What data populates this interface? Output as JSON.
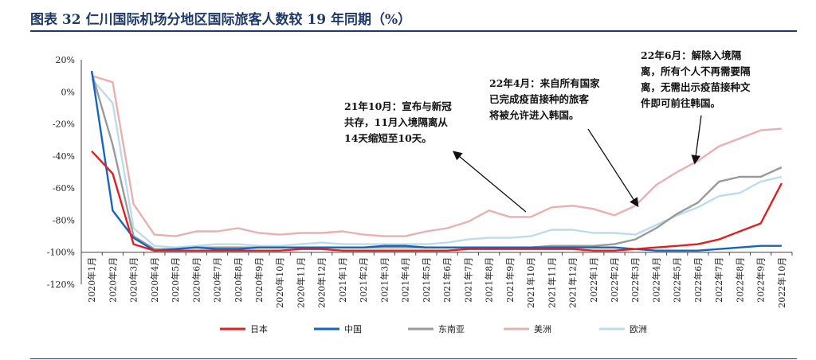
{
  "title": "图表 32  仁川国际机场分地区国际旅客人数较 19 年同期（%）",
  "chart_data": {
    "type": "line",
    "ylim": [
      -120,
      20
    ],
    "yticks": [
      "20%",
      "0%",
      "-20%",
      "-40%",
      "-60%",
      "-80%",
      "-100%",
      "-120%"
    ],
    "ytick_values": [
      20,
      0,
      -20,
      -40,
      -60,
      -80,
      -100,
      -120
    ],
    "categories": [
      "2020年1月",
      "2020年2月",
      "2020年3月",
      "2020年4月",
      "2020年5月",
      "2020年6月",
      "2020年7月",
      "2020年8月",
      "2020年9月",
      "2020年10月",
      "2020年11月",
      "2020年12月",
      "2021年1月",
      "2021年2月",
      "2021年3月",
      "2021年4月",
      "2021年5月",
      "2021年6月",
      "2021年7月",
      "2021年8月",
      "2021年9月",
      "2021年10月",
      "2021年11月",
      "2021年12月",
      "2022年1月",
      "2022年2月",
      "2022年3月",
      "2022年4月",
      "2022年5月",
      "2022年6月",
      "2022年7月",
      "2022年8月",
      "2022年9月",
      "2022年10月"
    ],
    "series": [
      {
        "name": "日本",
        "color": "#e02020",
        "values": [
          -37,
          -51,
          -95,
          -99,
          -99,
          -99,
          -99,
          -99,
          -99,
          -99,
          -98,
          -98,
          -99,
          -99,
          -99,
          -99,
          -99,
          -99,
          -98,
          -98,
          -98,
          -98,
          -98,
          -98,
          -99,
          -99,
          -98,
          -97,
          -96,
          -95,
          -92,
          -87,
          -82,
          -57
        ]
      },
      {
        "name": "中国",
        "color": "#1565c0",
        "values": [
          13,
          -74,
          -91,
          -99,
          -98,
          -97,
          -98,
          -98,
          -97,
          -97,
          -97,
          -97,
          -97,
          -97,
          -96,
          -96,
          -97,
          -97,
          -97,
          -97,
          -97,
          -97,
          -97,
          -97,
          -97,
          -97,
          -98,
          -99,
          -99,
          -99,
          -98,
          -97,
          -96,
          -96
        ]
      },
      {
        "name": "东南亚",
        "color": "#9a9a9a",
        "values": [
          12,
          -33,
          -90,
          -98,
          -98,
          -97,
          -97,
          -97,
          -97,
          -97,
          -97,
          -97,
          -97,
          -97,
          -97,
          -97,
          -97,
          -97,
          -97,
          -97,
          -97,
          -97,
          -96,
          -96,
          -96,
          -95,
          -92,
          -85,
          -76,
          -69,
          -56,
          -53,
          -53,
          -47
        ]
      },
      {
        "name": "美洲",
        "color": "#eab0b0",
        "values": [
          10,
          6,
          -70,
          -89,
          -90,
          -87,
          -87,
          -85,
          -88,
          -89,
          -88,
          -88,
          -87,
          -89,
          -90,
          -90,
          -87,
          -85,
          -81,
          -74,
          -78,
          -78,
          -72,
          -71,
          -73,
          -77,
          -71,
          -58,
          -50,
          -43,
          -34,
          -29,
          -24,
          -23
        ]
      },
      {
        "name": "欧洲",
        "color": "#bcdcec",
        "values": [
          8,
          -7,
          -85,
          -96,
          -97,
          -96,
          -95,
          -95,
          -96,
          -96,
          -95,
          -94,
          -95,
          -95,
          -95,
          -95,
          -95,
          -94,
          -92,
          -91,
          -91,
          -90,
          -86,
          -86,
          -88,
          -88,
          -89,
          -83,
          -77,
          -72,
          -65,
          -63,
          -56,
          -53
        ]
      }
    ],
    "annotations": [
      {
        "text": "21年10月：宣布与新冠\n共存，11月入境隔离从\n14天缩短至10天。",
        "target_category": "2021年10月"
      },
      {
        "text": "22年4月：来自所有国家\n已完成疫苗接种的旅客\n将被允许进入韩国。",
        "target_category": "2022年3月"
      },
      {
        "text": "22年6月：解除入境隔\n离，所有个人不再需要隔\n离，无需出示疫苗接种文\n件即可前往韩国。",
        "target_category": "2022年6月"
      }
    ]
  }
}
